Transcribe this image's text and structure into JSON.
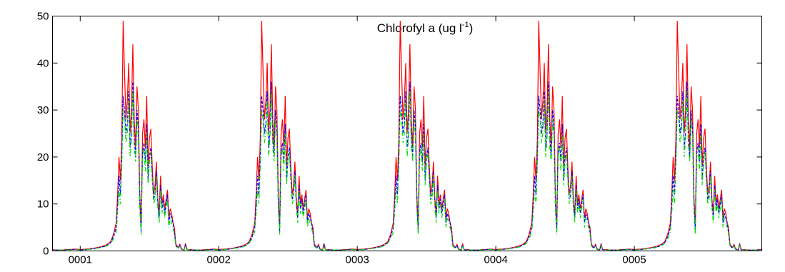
{
  "chart_data": {
    "type": "line",
    "title_main": "Chlorofyl a (ug l",
    "title_sup": "-1",
    "title_end": ")",
    "xlabel": "",
    "ylabel": "",
    "ylim": [
      0,
      50
    ],
    "yticks": [
      0,
      10,
      20,
      30,
      40,
      50
    ],
    "xlim": [
      0.8,
      5.92
    ],
    "xticks": [
      {
        "value": 1,
        "label": "0001"
      },
      {
        "value": 2,
        "label": "0002"
      },
      {
        "value": 3,
        "label": "0003"
      },
      {
        "value": 4,
        "label": "0004"
      },
      {
        "value": 5,
        "label": "0005"
      }
    ],
    "grid": false,
    "legend": "none",
    "year_pattern_x": [
      0.0,
      0.05,
      0.1,
      0.15,
      0.18,
      0.2,
      0.22,
      0.24,
      0.26,
      0.27,
      0.28,
      0.29,
      0.3,
      0.31,
      0.32,
      0.33,
      0.34,
      0.35,
      0.36,
      0.37,
      0.38,
      0.39,
      0.4,
      0.41,
      0.42,
      0.43,
      0.44,
      0.45,
      0.46,
      0.47,
      0.48,
      0.49,
      0.5,
      0.51,
      0.52,
      0.53,
      0.54,
      0.55,
      0.56,
      0.57,
      0.58,
      0.59,
      0.6,
      0.61,
      0.62,
      0.63,
      0.64,
      0.65,
      0.66,
      0.67,
      0.68,
      0.69,
      0.7,
      0.71,
      0.72,
      0.73,
      0.74,
      0.75,
      0.76,
      0.77,
      0.78,
      0.79,
      0.8,
      0.82,
      0.85,
      0.88,
      0.9,
      0.93,
      0.96,
      1.0
    ],
    "series": [
      {
        "color": "#ff0000",
        "dash": "",
        "values": [
          0.3,
          0.4,
          0.6,
          0.9,
          1.2,
          1.5,
          2.0,
          3.5,
          6.0,
          12.0,
          20.0,
          15.0,
          24.0,
          49.0,
          38.0,
          28.0,
          32.0,
          40.0,
          25.0,
          30.0,
          44.0,
          28.0,
          22.0,
          35.0,
          30.0,
          12.0,
          5.0,
          25.0,
          28.0,
          22.0,
          33.0,
          18.0,
          24.0,
          26.0,
          18.0,
          12.0,
          14.0,
          19.0,
          11.0,
          8.0,
          16.0,
          10.0,
          12.0,
          9.0,
          11.0,
          13.0,
          7.0,
          9.0,
          8.0,
          6.0,
          5.0,
          1.5,
          1.0,
          0.8,
          1.4,
          0.5,
          0.3,
          0.2,
          1.6,
          0.4,
          0.2,
          0.3,
          0.3,
          0.2,
          0.2,
          0.2,
          0.3,
          0.3,
          0.4,
          0.3
        ]
      },
      {
        "color": "#0000ff",
        "dash": "4,2",
        "values": [
          0.2,
          0.3,
          0.5,
          0.8,
          1.0,
          1.3,
          1.8,
          3.0,
          5.0,
          10.0,
          16.0,
          12.0,
          20.0,
          33.0,
          30.0,
          25.0,
          27.0,
          34.0,
          22.0,
          25.0,
          36.0,
          24.0,
          20.0,
          30.0,
          26.0,
          10.0,
          4.0,
          21.0,
          23.0,
          19.0,
          27.0,
          15.0,
          20.0,
          22.0,
          16.0,
          11.0,
          12.0,
          17.0,
          10.0,
          7.0,
          14.0,
          9.0,
          11.0,
          8.0,
          10.0,
          12.0,
          6.0,
          8.0,
          7.0,
          6.0,
          4.0,
          1.2,
          0.8,
          0.7,
          1.2,
          0.4,
          0.3,
          0.2,
          1.3,
          0.3,
          0.2,
          0.2,
          0.2,
          0.2,
          0.2,
          0.2,
          0.2,
          0.3,
          0.3,
          0.2
        ]
      },
      {
        "color": "#00dd00",
        "dash": "6,3,1,3",
        "values": [
          0.2,
          0.3,
          0.5,
          0.7,
          0.9,
          1.2,
          1.6,
          2.6,
          4.0,
          8.0,
          13.0,
          10.0,
          18.0,
          30.0,
          28.0,
          23.0,
          25.0,
          32.0,
          20.0,
          24.0,
          34.0,
          22.0,
          19.0,
          28.0,
          24.0,
          9.0,
          3.5,
          20.0,
          22.0,
          17.0,
          25.0,
          14.0,
          19.0,
          21.0,
          15.0,
          10.0,
          11.0,
          16.0,
          9.0,
          6.0,
          13.0,
          8.0,
          10.0,
          7.0,
          9.0,
          11.0,
          5.0,
          7.0,
          6.0,
          5.0,
          3.5,
          1.0,
          0.7,
          0.6,
          1.0,
          0.3,
          0.2,
          0.2,
          1.1,
          0.3,
          0.2,
          0.2,
          0.2,
          0.2,
          0.2,
          0.2,
          0.2,
          0.2,
          0.3,
          0.2
        ]
      }
    ]
  }
}
